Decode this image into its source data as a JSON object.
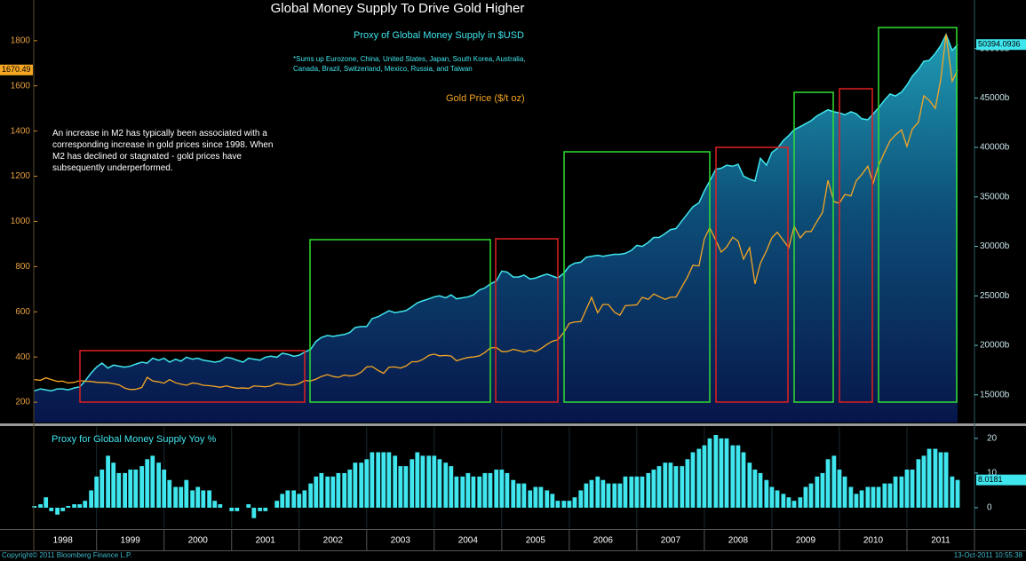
{
  "chart_data": {
    "type": "line",
    "title": "Global Money Supply To Drive Gold Higher",
    "note": "*Sums up Eurozone, China, United States, Japan, South Korea, Australia, Canada, Brazil, Switzerland, Mexico, Russia, and Taiwan",
    "annotation": "An increase in M2 has typically been associated with a corresponding increase in gold prices since 1998. When M2 has declined or stagnated - gold prices have subsequently underperformed.",
    "copyright": "Copyright© 2011 Bloomberg Finance L.P.",
    "timestamp": "13-Oct-2011 10:55:38",
    "x": [
      1998.08,
      1998.17,
      1998.25,
      1998.33,
      1998.42,
      1998.5,
      1998.58,
      1998.67,
      1998.75,
      1998.83,
      1998.92,
      1999,
      1999.08,
      1999.17,
      1999.25,
      1999.33,
      1999.42,
      1999.5,
      1999.58,
      1999.67,
      1999.75,
      1999.83,
      1999.92,
      2000,
      2000.08,
      2000.17,
      2000.25,
      2000.33,
      2000.42,
      2000.5,
      2000.58,
      2000.67,
      2000.75,
      2000.83,
      2000.92,
      2001,
      2001.08,
      2001.17,
      2001.25,
      2001.33,
      2001.42,
      2001.5,
      2001.58,
      2001.67,
      2001.75,
      2001.83,
      2001.92,
      2002,
      2002.08,
      2002.17,
      2002.25,
      2002.33,
      2002.42,
      2002.5,
      2002.58,
      2002.67,
      2002.75,
      2002.83,
      2002.92,
      2003,
      2003.08,
      2003.17,
      2003.25,
      2003.33,
      2003.42,
      2003.5,
      2003.58,
      2003.67,
      2003.75,
      2003.83,
      2003.92,
      2004,
      2004.08,
      2004.17,
      2004.25,
      2004.33,
      2004.42,
      2004.5,
      2004.58,
      2004.67,
      2004.75,
      2004.83,
      2004.92,
      2005,
      2005.08,
      2005.17,
      2005.25,
      2005.33,
      2005.42,
      2005.5,
      2005.58,
      2005.67,
      2005.75,
      2005.83,
      2005.92,
      2006,
      2006.08,
      2006.17,
      2006.25,
      2006.33,
      2006.42,
      2006.5,
      2006.58,
      2006.67,
      2006.75,
      2006.83,
      2006.92,
      2007,
      2007.08,
      2007.17,
      2007.25,
      2007.33,
      2007.42,
      2007.5,
      2007.58,
      2007.67,
      2007.75,
      2007.83,
      2007.92,
      2008,
      2008.08,
      2008.17,
      2008.25,
      2008.33,
      2008.42,
      2008.5,
      2008.58,
      2008.67,
      2008.75,
      2008.83,
      2008.92,
      2009,
      2009.08,
      2009.17,
      2009.25,
      2009.33,
      2009.42,
      2009.5,
      2009.58,
      2009.67,
      2009.75,
      2009.83,
      2009.92,
      2010,
      2010.08,
      2010.17,
      2010.25,
      2010.33,
      2010.42,
      2010.5,
      2010.58,
      2010.67,
      2010.75,
      2010.83,
      2010.92,
      2011,
      2011.08,
      2011.17,
      2011.25,
      2011.33,
      2011.42,
      2011.5,
      2011.58,
      2011.67,
      2011.75
    ],
    "xlim": [
      1998.07,
      2012.0
    ],
    "xticks": [
      {
        "value": 1998.5,
        "label": "1998"
      },
      {
        "value": 1999.5,
        "label": "1999"
      },
      {
        "value": 2000.5,
        "label": "2000"
      },
      {
        "value": 2001.5,
        "label": "2001"
      },
      {
        "value": 2002.5,
        "label": "2002"
      },
      {
        "value": 2003.5,
        "label": "2003"
      },
      {
        "value": 2004.5,
        "label": "2004"
      },
      {
        "value": 2005.5,
        "label": "2005"
      },
      {
        "value": 2006.5,
        "label": "2006"
      },
      {
        "value": 2007.5,
        "label": "2007"
      },
      {
        "value": 2008.5,
        "label": "2008"
      },
      {
        "value": 2009.5,
        "label": "2009"
      },
      {
        "value": 2010.5,
        "label": "2010"
      },
      {
        "value": 2011.5,
        "label": "2011"
      }
    ],
    "ylim": [
      110,
      1980
    ],
    "yticks": [
      200,
      400,
      600,
      800,
      1000,
      1200,
      1400,
      1600,
      1800
    ],
    "y2lim": [
      12200,
      54900
    ],
    "y2ticks": [
      {
        "value": 15000,
        "label": "15000b"
      },
      {
        "value": 20000,
        "label": "20000b"
      },
      {
        "value": 25000,
        "label": "25000b"
      },
      {
        "value": 30000,
        "label": "30000b"
      },
      {
        "value": 35000,
        "label": "35000b"
      },
      {
        "value": 40000,
        "label": "40000b"
      },
      {
        "value": 45000,
        "label": "45000b"
      },
      {
        "value": 50000,
        "label": "50000b"
      }
    ],
    "y3lim": [
      -5.9,
      23.3
    ],
    "y3ticks": [
      0,
      10,
      20
    ],
    "series": [
      {
        "name": "Proxy of Global Money Supply in $USD",
        "type": "area",
        "axis": "y2",
        "color": "#3fe6ee",
        "values": [
          15400,
          15600,
          15500,
          15400,
          15600,
          15600,
          15500,
          15700,
          15800,
          16400,
          17200,
          17800,
          18200,
          17700,
          18000,
          17900,
          17800,
          17900,
          18100,
          18300,
          18200,
          18700,
          18500,
          18700,
          18300,
          18600,
          18400,
          18800,
          18600,
          18700,
          18500,
          18400,
          18300,
          18400,
          18800,
          18700,
          18500,
          18300,
          18700,
          18600,
          18500,
          18800,
          18900,
          18800,
          19200,
          19100,
          18900,
          19000,
          19300,
          19600,
          20400,
          20800,
          21000,
          20900,
          21000,
          21100,
          21300,
          21800,
          21900,
          21900,
          22700,
          22900,
          23200,
          23500,
          23300,
          23400,
          23500,
          23900,
          24300,
          24500,
          24700,
          24900,
          25000,
          24800,
          25100,
          24700,
          24800,
          24900,
          25100,
          25600,
          25800,
          26200,
          26500,
          27500,
          27400,
          26900,
          26900,
          27100,
          26700,
          26800,
          27000,
          27200,
          27000,
          26800,
          27300,
          28000,
          28300,
          28400,
          28900,
          29000,
          29100,
          29000,
          29100,
          29200,
          29200,
          29300,
          29600,
          30100,
          30000,
          30400,
          30900,
          30900,
          31300,
          31700,
          31800,
          32600,
          33300,
          34000,
          34400,
          35600,
          36600,
          37800,
          37900,
          38200,
          38100,
          38300,
          37100,
          36800,
          36600,
          38900,
          38200,
          39500,
          39900,
          40700,
          41200,
          41800,
          42100,
          42400,
          42700,
          43200,
          43500,
          43800,
          43600,
          43500,
          43300,
          43600,
          43400,
          42900,
          42800,
          43400,
          44000,
          44800,
          45400,
          45200,
          45600,
          46300,
          47200,
          47900,
          48700,
          48800,
          49500,
          50300,
          51400,
          49800,
          50394.0936
        ]
      },
      {
        "name": "Gold Price ($/t oz)",
        "type": "line",
        "axis": "y",
        "color": "#f5a623",
        "values": [
          300,
          297,
          308,
          300,
          292,
          293,
          285,
          288,
          295,
          293,
          292,
          288,
          287,
          286,
          282,
          277,
          262,
          256,
          257,
          265,
          310,
          294,
          290,
          284,
          300,
          286,
          280,
          275,
          285,
          282,
          275,
          273,
          270,
          266,
          272,
          266,
          262,
          263,
          261,
          272,
          270,
          268,
          272,
          284,
          280,
          276,
          276,
          282,
          296,
          294,
          302,
          314,
          322,
          314,
          310,
          320,
          316,
          319,
          333,
          356,
          358,
          340,
          328,
          355,
          356,
          351,
          360,
          379,
          379,
          389,
          407,
          413,
          405,
          407,
          404,
          383,
          392,
          398,
          400,
          405,
          420,
          440,
          442,
          424,
          424,
          434,
          428,
          422,
          431,
          424,
          437,
          456,
          470,
          476,
          509,
          549,
          555,
          557,
          610,
          664,
          596,
          633,
          632,
          598,
          585,
          627,
          629,
          631,
          664,
          655,
          679,
          667,
          655,
          665,
          665,
          712,
          754,
          806,
          803,
          923,
          972,
          916,
          864,
          887,
          930,
          913,
          833,
          884,
          723,
          815,
          870,
          928,
          952,
          916,
          884,
          979,
          927,
          955,
          955,
          1001,
          1040,
          1182,
          1087,
          1081,
          1119,
          1113,
          1180,
          1207,
          1244,
          1169,
          1248,
          1307,
          1357,
          1383,
          1405,
          1332,
          1409,
          1439,
          1556,
          1536,
          1500,
          1628,
          1829,
          1620,
          1670.49
        ]
      },
      {
        "name": "Proxy for Global Money Supply Yoy %",
        "type": "bar",
        "axis": "y3",
        "color": "#3fe6ee",
        "values": [
          0.5,
          1,
          3,
          -1,
          -2,
          -1,
          0.5,
          1,
          1,
          2,
          5,
          9,
          11,
          15,
          13,
          10,
          10,
          11,
          11,
          12,
          14,
          15,
          13,
          11,
          8,
          6,
          6,
          8,
          5,
          6,
          5,
          5,
          2,
          1,
          0,
          -1,
          -1,
          0,
          1,
          -3,
          -1,
          -1,
          0,
          2,
          4,
          5,
          5,
          4,
          5,
          7,
          9,
          10,
          9,
          9,
          10,
          10,
          11,
          13,
          13,
          14,
          16,
          16,
          16,
          16,
          15,
          12,
          12,
          14,
          16,
          15,
          15,
          15,
          14,
          13,
          12,
          9,
          9,
          10,
          9,
          9,
          10,
          10,
          11,
          11,
          10,
          8,
          7,
          7,
          5,
          6,
          6,
          5,
          4,
          2,
          2,
          2,
          3,
          5,
          7,
          8,
          9,
          8,
          7,
          7,
          7,
          9,
          9,
          9,
          9,
          10,
          11,
          12,
          13,
          13,
          12,
          12,
          14,
          16,
          17,
          18,
          20,
          21,
          20,
          20,
          18,
          18,
          16,
          13,
          11,
          10,
          8,
          6,
          5,
          4,
          3,
          2,
          3,
          6,
          7,
          9,
          10,
          14,
          15,
          11,
          9,
          6,
          4,
          5,
          6,
          6,
          6,
          7,
          7,
          9,
          9,
          11,
          11,
          14,
          15,
          17,
          17,
          16,
          16,
          9,
          8.0181
        ]
      }
    ]
  }
}
